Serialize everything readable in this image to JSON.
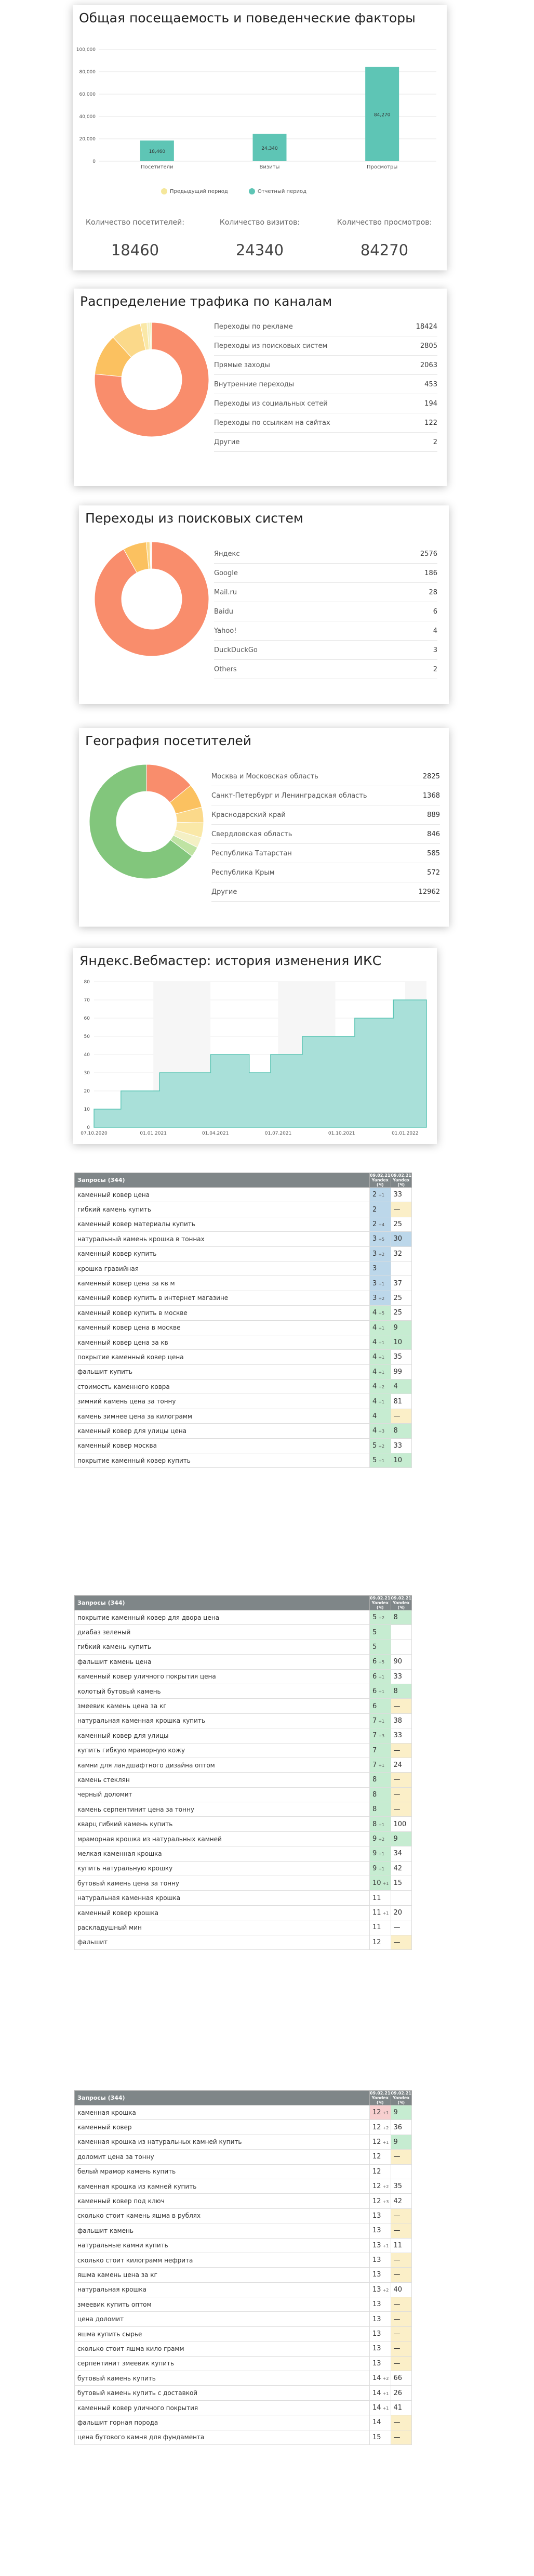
{
  "sec1": {
    "title": "Общая посещаемость и поведенческие факторы",
    "stats": [
      {
        "label": "Количество посетителей:",
        "value": "18460"
      },
      {
        "label": "Количество визитов:",
        "value": "24340"
      },
      {
        "label": "Количество просмотров:",
        "value": "84270"
      }
    ],
    "legend": [
      "Предыдущий период",
      "Отчетный период"
    ],
    "colors": {
      "current": "#5ec5b5",
      "previous": "#f5e79b"
    }
  },
  "chart_data": [
    {
      "type": "bar",
      "title": "Общая посещаемость и поведенческие факторы",
      "categories": [
        "Посетители",
        "Визиты",
        "Просмотры"
      ],
      "series": [
        {
          "name": "Предыдущий период",
          "values": [
            0,
            0,
            0
          ]
        },
        {
          "name": "Отчетный период",
          "values": [
            18460,
            24340,
            84270
          ]
        }
      ],
      "ylim": [
        0,
        100000
      ],
      "yticks": [
        "100,000",
        "80,000",
        "60,000",
        "40,000",
        "20,000",
        "0"
      ],
      "bar_labels": [
        "18,460",
        "24,340",
        "84,270"
      ],
      "legend": "bottom"
    },
    {
      "type": "area",
      "title": "Яндекс.Вебмастер: история изменения ИКС",
      "x": [
        "07.10.2020",
        "01.01.2021",
        "01.04.2021",
        "01.07.2021",
        "01.10.2021",
        "01.01.2022"
      ],
      "yticks": [
        "80",
        "70",
        "60",
        "50",
        "40",
        "30",
        "20",
        "10",
        "0"
      ],
      "ylim": [
        0,
        80
      ],
      "steps": [
        [
          "07.10.2020",
          10
        ],
        [
          "15.11.2020",
          20
        ],
        [
          "10.01.2021",
          30
        ],
        [
          "25.03.2021",
          40
        ],
        [
          "20.05.2021",
          30
        ],
        [
          "20.06.2021",
          40
        ],
        [
          "05.08.2021",
          50
        ],
        [
          "20.10.2021",
          60
        ],
        [
          "15.12.2021",
          70
        ],
        [
          "01.02.2022",
          70
        ]
      ],
      "grid": true
    }
  ],
  "sec2": {
    "title": "Распределение трафика по каналам",
    "rows": [
      {
        "label": "Переходы по рекламе",
        "value": "18424"
      },
      {
        "label": "Переходы из поисковых систем",
        "value": "2805"
      },
      {
        "label": "Прямые заходы",
        "value": "2063"
      },
      {
        "label": "Внутренние переходы",
        "value": "453"
      },
      {
        "label": "Переходы из социальных сетей",
        "value": "194"
      },
      {
        "label": "Переходы по ссылкам на сайтах",
        "value": "122"
      },
      {
        "label": "Другие",
        "value": "2"
      }
    ],
    "slices": [
      18424,
      2805,
      2063,
      453,
      194,
      122,
      2
    ],
    "colors": [
      "#f98d6c",
      "#fbc160",
      "#fbd98a",
      "#fae8a7",
      "#f4f0c4",
      "#eef2b3",
      "#ddd"
    ]
  },
  "sec3": {
    "title": "Переходы из поисковых систем",
    "rows": [
      {
        "label": "Яндекс",
        "value": "2576"
      },
      {
        "label": "Google",
        "value": "186"
      },
      {
        "label": "Mail.ru",
        "value": "28"
      },
      {
        "label": "Baidu",
        "value": "6"
      },
      {
        "label": "Yahoo!",
        "value": "4"
      },
      {
        "label": "DuckDuckGo",
        "value": "3"
      },
      {
        "label": "Others",
        "value": "2"
      }
    ],
    "slices": [
      2576,
      186,
      28,
      6,
      4,
      3,
      2
    ],
    "colors": [
      "#f98d6c",
      "#fbc160",
      "#fbd98a",
      "#fae8a7",
      "#f4f0c4",
      "#eef2b3",
      "#ddd"
    ]
  },
  "sec4": {
    "title": "География посетителей",
    "rows": [
      {
        "label": "Москва и Московская область",
        "value": "2825"
      },
      {
        "label": "Санкт-Петербург и Ленинградская область",
        "value": "1368"
      },
      {
        "label": "Краснодарский край",
        "value": "889"
      },
      {
        "label": "Свердловская область",
        "value": "846"
      },
      {
        "label": "Республика Татарстан",
        "value": "585"
      },
      {
        "label": "Республика Крым",
        "value": "572"
      },
      {
        "label": "Другие",
        "value": "12962"
      }
    ],
    "slices": [
      2825,
      1368,
      889,
      846,
      585,
      572,
      12962
    ],
    "colors": [
      "#f98d6c",
      "#fbc160",
      "#fbd98a",
      "#fae8a7",
      "#f4f0c4",
      "#bfe3a3",
      "#82c67c"
    ]
  },
  "sec5": {
    "title": "Яндекс.Вебмастер: история изменения ИКС"
  },
  "tables": [
    {
      "header": [
        "Запросы (344)",
        "09.02.21 Yandex (Ч)",
        "09.02.21 Yandex (Ч)"
      ],
      "rows": [
        [
          "каменный ковер цена",
          "2",
          "+1",
          "33",
          "bl",
          "wh"
        ],
        [
          "гибкий камень купить",
          "2",
          "",
          "—",
          "bl",
          "ye"
        ],
        [
          "каменный ковер материалы купить",
          "2",
          "+4",
          "25",
          "bl",
          "wh"
        ],
        [
          "натуральный камень крошка в тоннах",
          "3",
          "+5",
          "30",
          "bl",
          "bl"
        ],
        [
          "каменный ковер купить",
          "3",
          "+2",
          "32",
          "bl",
          "wh"
        ],
        [
          "крошка гравийная",
          "3",
          "",
          "",
          "bl",
          "wh"
        ],
        [
          "каменный ковер цена за кв м",
          "3",
          "+1",
          "37",
          "bl",
          "wh"
        ],
        [
          "каменный ковер купить в интернет магазине",
          "3",
          "+2",
          "25",
          "bl",
          "wh"
        ],
        [
          "каменный ковер купить в москве",
          "4",
          "+5",
          "25",
          "gr",
          "wh"
        ],
        [
          "каменный ковер цена в москве",
          "4",
          "+1",
          "9",
          "gr",
          "gr"
        ],
        [
          "каменный ковер цена за кв",
          "4",
          "+1",
          "10",
          "gr",
          "gr"
        ],
        [
          "покрытие каменный ковер цена",
          "4",
          "+1",
          "35",
          "gr",
          "wh"
        ],
        [
          "фальшит купить",
          "4",
          "+1",
          "99",
          "gr",
          "wh"
        ],
        [
          "стоимость каменного ковра",
          "4",
          "+2",
          "4",
          "gr",
          "gr"
        ],
        [
          "зимний камень цена за тонну",
          "4",
          "+1",
          "81",
          "gr",
          "wh"
        ],
        [
          "камень зимнее цена за килограмм",
          "4",
          "",
          "—",
          "gr",
          "ye"
        ],
        [
          "каменный ковер для улицы цена",
          "4",
          "+3",
          "8",
          "gr",
          "gr"
        ],
        [
          "каменный ковер москва",
          "5",
          "+2",
          "33",
          "gr",
          "wh"
        ],
        [
          "покрытие каменный ковер купить",
          "5",
          "+1",
          "10",
          "gr",
          "gr"
        ]
      ]
    },
    {
      "header": [
        "Запросы (344)",
        "09.02.21 Yandex (Ч)",
        "09.02.21 Yandex (Ч)"
      ],
      "rows": [
        [
          "покрытие каменный ковер для двора цена",
          "5",
          "+2",
          "8",
          "gr",
          "gr"
        ],
        [
          "диабаз зеленый",
          "5",
          "",
          "",
          "gr",
          "wh"
        ],
        [
          "гибкий камень купить",
          "5",
          "",
          "",
          "gr",
          "wh"
        ],
        [
          "фальшит камень цена",
          "6",
          "+5",
          "90",
          "gr",
          "wh"
        ],
        [
          "каменный ковер уличного покрытия цена",
          "6",
          "+1",
          "33",
          "gr",
          "wh"
        ],
        [
          "колотый бутовый камень",
          "6",
          "+1",
          "8",
          "gr",
          "gr"
        ],
        [
          "змеевик камень цена за кг",
          "6",
          "",
          "—",
          "gr",
          "ye"
        ],
        [
          "натуральная каменная крошка купить",
          "7",
          "+1",
          "38",
          "gr",
          "wh"
        ],
        [
          "каменный ковер для улицы",
          "7",
          "+3",
          "33",
          "gr",
          "wh"
        ],
        [
          "купить гибкую мраморную кожу",
          "7",
          "",
          "—",
          "gr",
          "ye"
        ],
        [
          "камни для ландшафтного дизайна оптом",
          "7",
          "+1",
          "24",
          "gr",
          "wh"
        ],
        [
          "камень стеклян",
          "8",
          "",
          "—",
          "gr",
          "ye"
        ],
        [
          "черный доломит",
          "8",
          "",
          "—",
          "gr",
          "ye"
        ],
        [
          "камень серпентинит цена за тонну",
          "8",
          "",
          "—",
          "gr",
          "ye"
        ],
        [
          "кварц гибкий камень купить",
          "8",
          "+1",
          "100",
          "gr",
          "wh"
        ],
        [
          "мраморная крошка из натуральных камней",
          "9",
          "+2",
          "9",
          "gr",
          "gr"
        ],
        [
          "мелкая каменная крошка",
          "9",
          "+1",
          "34",
          "gr",
          "wh"
        ],
        [
          "купить натуральную крошку",
          "9",
          "+1",
          "42",
          "gr",
          "wh"
        ],
        [
          "бутовый камень цена за тонну",
          "10",
          "+1",
          "15",
          "gr",
          "wh"
        ],
        [
          "натуральная каменная крошка",
          "11",
          "",
          "",
          "wh",
          "wh"
        ],
        [
          "каменный ковер крошка",
          "11",
          "+1",
          "20",
          "wh",
          "wh"
        ],
        [
          "раскладушный мин",
          "11",
          "",
          "—",
          "wh",
          "wh"
        ],
        [
          "фальшит",
          "12",
          "",
          "—",
          "wh",
          "ye"
        ]
      ]
    },
    {
      "header": [
        "Запросы (344)",
        "09.02.21 Yandex (Ч)",
        "09.02.21 Yandex (Ч)"
      ],
      "rows": [
        [
          "каменная крошка",
          "12",
          "+1",
          "9",
          "rd",
          "gr"
        ],
        [
          "каменный ковер",
          "12",
          "+2",
          "36",
          "wh",
          "wh"
        ],
        [
          "каменная крошка из натуральных камней купить",
          "12",
          "+1",
          "9",
          "wh",
          "gr"
        ],
        [
          "доломит цена за тонну",
          "12",
          "",
          "—",
          "wh",
          "ye"
        ],
        [
          "белый мрамор камень купить",
          "12",
          "",
          "",
          "wh",
          "wh"
        ],
        [
          "каменная крошка из камней купить",
          "12",
          "+2",
          "35",
          "wh",
          "wh"
        ],
        [
          "каменный ковер под ключ",
          "12",
          "+3",
          "42",
          "wh",
          "wh"
        ],
        [
          "сколько стоит камень яшма в рублях",
          "13",
          "",
          "—",
          "wh",
          "ye"
        ],
        [
          "фальшит камень",
          "13",
          "",
          "—",
          "wh",
          "ye"
        ],
        [
          "натуральные камни купить",
          "13",
          "+1",
          "11",
          "wh",
          "wh"
        ],
        [
          "сколько стоит килограмм нефрита",
          "13",
          "",
          "—",
          "wh",
          "ye"
        ],
        [
          "яшма камень цена за кг",
          "13",
          "",
          "—",
          "wh",
          "ye"
        ],
        [
          "натуральная крошка",
          "13",
          "+2",
          "40",
          "wh",
          "wh"
        ],
        [
          "змеевик купить оптом",
          "13",
          "",
          "—",
          "wh",
          "ye"
        ],
        [
          "цена доломит",
          "13",
          "",
          "—",
          "wh",
          "ye"
        ],
        [
          "яшма купить сырье",
          "13",
          "",
          "—",
          "wh",
          "ye"
        ],
        [
          "сколько стоит яшма кило грамм",
          "13",
          "",
          "—",
          "wh",
          "ye"
        ],
        [
          "серпентинит змеевик купить",
          "13",
          "",
          "—",
          "wh",
          "ye"
        ],
        [
          "бутовый камень купить",
          "14",
          "+2",
          "66",
          "wh",
          "wh"
        ],
        [
          "бутовый камень купить с доставкой",
          "14",
          "+1",
          "26",
          "wh",
          "wh"
        ],
        [
          "каменный ковер уличного покрытия",
          "14",
          "+1",
          "41",
          "wh",
          "wh"
        ],
        [
          "фальшит горная порода",
          "14",
          "",
          "—",
          "wh",
          "ye"
        ],
        [
          "цена бутового камня для фундамента",
          "15",
          "",
          "—",
          "wh",
          "ye"
        ]
      ]
    }
  ]
}
